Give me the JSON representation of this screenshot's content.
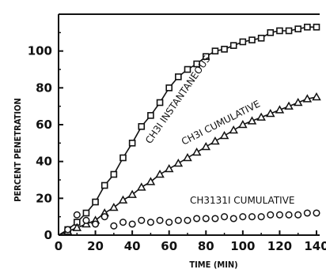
{
  "chart_data": {
    "type": "scatter",
    "xlabel": "TIME (MIN)",
    "ylabel": "PERCENT PENETRATION",
    "xlim": [
      0,
      140
    ],
    "ylim": [
      0,
      120
    ],
    "xticks": [
      0,
      20,
      40,
      60,
      80,
      100,
      120,
      140
    ],
    "yticks": [
      0,
      20,
      40,
      60,
      80,
      100
    ],
    "grid": false,
    "series": [
      {
        "name": "CH3I INSTANTANEOUS",
        "marker": "square",
        "x": [
          5,
          10,
          15,
          20,
          25,
          30,
          35,
          40,
          45,
          50,
          55,
          60,
          65,
          70,
          75,
          80,
          85,
          90,
          95,
          100,
          105,
          110,
          115,
          120,
          125,
          130,
          135,
          140
        ],
        "y": [
          3,
          7,
          12,
          18,
          27,
          33,
          42,
          50,
          59,
          65,
          72,
          80,
          86,
          90,
          93,
          97,
          100,
          101,
          103,
          105,
          106,
          107,
          110,
          111,
          111,
          112,
          113,
          113
        ]
      },
      {
        "name": "CH3I CUMULATIVE",
        "marker": "triangle",
        "x": [
          5,
          10,
          15,
          20,
          25,
          30,
          35,
          40,
          45,
          50,
          55,
          60,
          65,
          70,
          75,
          80,
          85,
          90,
          95,
          100,
          105,
          110,
          115,
          120,
          125,
          130,
          135,
          140
        ],
        "y": [
          2,
          4,
          6,
          8,
          12,
          15,
          19,
          22,
          26,
          29,
          33,
          36,
          39,
          42,
          45,
          48,
          51,
          54,
          57,
          60,
          62,
          64,
          66,
          68,
          70,
          72,
          74,
          75
        ]
      },
      {
        "name": "CH3131I CUMULATIVE",
        "marker": "circle",
        "x": [
          5,
          10,
          15,
          20,
          25,
          30,
          35,
          40,
          45,
          50,
          55,
          60,
          65,
          70,
          75,
          80,
          85,
          90,
          95,
          100,
          105,
          110,
          115,
          120,
          125,
          130,
          135,
          140
        ],
        "y": [
          3,
          11,
          8,
          6,
          10,
          5,
          7,
          6,
          8,
          7,
          8,
          7,
          8,
          8,
          9,
          9,
          9,
          10,
          9,
          10,
          10,
          10,
          11,
          11,
          11,
          11,
          12,
          12
        ]
      }
    ]
  }
}
